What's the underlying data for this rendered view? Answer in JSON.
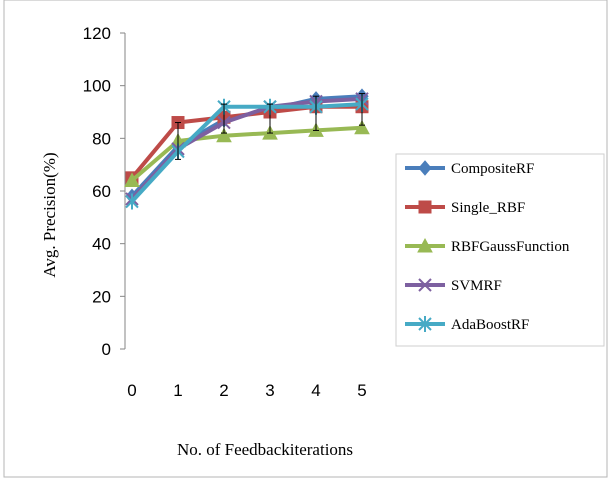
{
  "chart_data": {
    "type": "line",
    "title": "",
    "xlabel": "No. of Feedbackiterations",
    "ylabel": "Avg. Precision(%)",
    "categories": [
      "0",
      "1",
      "2",
      "3",
      "4",
      "5"
    ],
    "ylim": [
      0,
      120
    ],
    "yticks": [
      "0",
      "20",
      "40",
      "60",
      "80",
      "100",
      "120"
    ],
    "grid": false,
    "legend_position": "right",
    "error_bars": true,
    "series": [
      {
        "name": "CompositeRF",
        "values": [
          58,
          77,
          87,
          91,
          95,
          96
        ],
        "color": "#4a7ebb",
        "marker": "diamond"
      },
      {
        "name": "Single_RBF",
        "values": [
          65,
          86,
          88,
          90,
          92,
          92
        ],
        "color": "#be4b48",
        "marker": "square"
      },
      {
        "name": "RBFGaussFunction",
        "values": [
          64,
          79,
          81,
          82,
          83,
          84
        ],
        "color": "#98b954",
        "marker": "triangle"
      },
      {
        "name": "SVMRF",
        "values": [
          57,
          76,
          86,
          92,
          94,
          95
        ],
        "color": "#7d60a0",
        "marker": "x"
      },
      {
        "name": "AdaBoostRF",
        "values": [
          56,
          75,
          92,
          92,
          92,
          93
        ],
        "color": "#46aac5",
        "marker": "star"
      }
    ],
    "error_bar_values": [
      {
        "x": "1",
        "low": 72,
        "high": 86
      },
      {
        "x": "2",
        "low": 82,
        "high": 93
      },
      {
        "x": "3",
        "low": 82,
        "high": 93
      },
      {
        "x": "4",
        "low": 83,
        "high": 96
      },
      {
        "x": "5",
        "low": 85,
        "high": 97
      }
    ]
  }
}
